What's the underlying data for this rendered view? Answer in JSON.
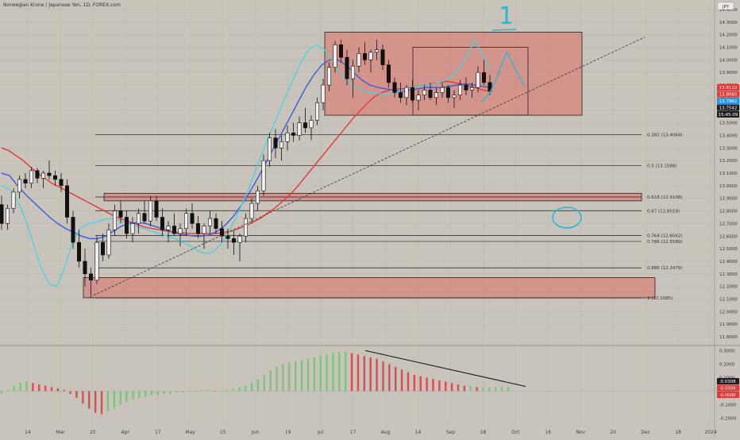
{
  "header": {
    "title": "Norwegian Krone / Japanese Yen, 1D, FOREX.com",
    "currency": "JPY",
    "annotation_number": "1"
  },
  "chart_data": [
    {
      "type": "candlestick",
      "title": "Norwegian Krone / Japanese Yen, 1D, FOREX.com",
      "ylabel": "JPY",
      "ylim": [
        11.75,
        14.45
      ],
      "yticks": [
        "14.4000",
        "14.3000",
        "14.2000",
        "14.1000",
        "14.0000",
        "13.9000",
        "13.8000",
        "13.7000",
        "13.6000",
        "13.5000",
        "13.4000",
        "13.3000",
        "13.2000",
        "13.1000",
        "13.0000",
        "12.9000",
        "12.8000",
        "12.7000",
        "12.6000",
        "12.5000",
        "12.4000",
        "12.3000",
        "12.2000",
        "12.1000",
        "12.0000",
        "11.9000",
        "11.8000"
      ],
      "xticks": [
        "14",
        "Mar",
        "20",
        "Apr",
        "17",
        "May",
        "15",
        "Jun",
        "19",
        "Jul",
        "17",
        "Aug",
        "14",
        "Sep",
        "18",
        "Oct",
        "16",
        "Nov",
        "20",
        "Dec",
        "18",
        "2024"
      ],
      "price_labels": [
        {
          "text": "13.9110",
          "color": "#e53935"
        },
        {
          "text": "13.8060",
          "color": "#e53935"
        },
        {
          "text": "13.7962",
          "color": "#2196f3"
        },
        {
          "text": "13.7542",
          "color": "#1e1e1e"
        },
        {
          "text": "15:45:09",
          "color": "#1e1e1e"
        }
      ],
      "fib_levels": [
        {
          "label": "0.382 (13.4064)",
          "value": 13.4064
        },
        {
          "label": "0.5 (13.1588)",
          "value": 13.1588
        },
        {
          "label": "0.618 (12.9108)",
          "value": 12.9108
        },
        {
          "label": "0.67 (12.8019)",
          "value": 12.8019
        },
        {
          "label": "0.764 (12.6042)",
          "value": 12.6042
        },
        {
          "label": "0.786 (12.5580)",
          "value": 12.558
        },
        {
          "label": "0.886 (12.3479)",
          "value": 12.3479
        },
        {
          "label": "1 (12.1085)",
          "value": 12.1085
        }
      ],
      "zones": [
        {
          "name": "resistance-range",
          "x": [
            -1,
            95
          ],
          "y": [
            13.56,
            14.22
          ]
        },
        {
          "name": "inner-range",
          "x": [
            50,
            92
          ],
          "y": [
            13.56,
            14.1
          ]
        },
        {
          "name": "support-zone",
          "x": [
            -1,
            115
          ],
          "y": [
            12.11,
            12.27
          ]
        },
        {
          "name": "fib-zone",
          "x": [
            -1,
            115
          ],
          "y": [
            12.88,
            12.94
          ]
        }
      ],
      "series": [
        {
          "kind": "ohlc",
          "values": [
            [
              12.85,
              12.92,
              12.65,
              12.7
            ],
            [
              12.7,
              12.85,
              12.65,
              12.82
            ],
            [
              12.82,
              12.98,
              12.78,
              12.95
            ],
            [
              12.95,
              13.08,
              12.9,
              13.05
            ],
            [
              13.05,
              13.1,
              12.98,
              13.02
            ],
            [
              13.02,
              13.15,
              12.98,
              13.12
            ],
            [
              13.12,
              13.14,
              13.02,
              13.06
            ],
            [
              13.06,
              13.12,
              12.98,
              13.1
            ],
            [
              13.1,
              13.2,
              13.05,
              13.08
            ],
            [
              13.08,
              13.12,
              13.0,
              13.05
            ],
            [
              13.05,
              13.1,
              12.95,
              13.0
            ],
            [
              13.0,
              13.05,
              12.7,
              12.75
            ],
            [
              12.75,
              12.8,
              12.5,
              12.55
            ],
            [
              12.55,
              12.65,
              12.35,
              12.4
            ],
            [
              12.4,
              12.5,
              12.2,
              12.3
            ],
            [
              12.3,
              12.35,
              12.11,
              12.25
            ],
            [
              12.25,
              12.6,
              12.22,
              12.55
            ],
            [
              12.55,
              12.62,
              12.4,
              12.45
            ],
            [
              12.45,
              12.7,
              12.42,
              12.65
            ],
            [
              12.65,
              12.85,
              12.6,
              12.8
            ],
            [
              12.8,
              12.88,
              12.7,
              12.75
            ],
            [
              12.75,
              12.8,
              12.58,
              12.62
            ],
            [
              12.62,
              12.75,
              12.55,
              12.7
            ],
            [
              12.7,
              12.82,
              12.62,
              12.78
            ],
            [
              12.78,
              12.88,
              12.7,
              12.72
            ],
            [
              12.72,
              12.92,
              12.68,
              12.88
            ],
            [
              12.88,
              12.92,
              12.72,
              12.75
            ],
            [
              12.75,
              12.82,
              12.6,
              12.65
            ],
            [
              12.65,
              12.72,
              12.55,
              12.68
            ],
            [
              12.68,
              12.78,
              12.6,
              12.62
            ],
            [
              12.62,
              12.7,
              12.52,
              12.66
            ],
            [
              12.66,
              12.82,
              12.6,
              12.78
            ],
            [
              12.78,
              12.86,
              12.66,
              12.7
            ],
            [
              12.7,
              12.76,
              12.58,
              12.62
            ],
            [
              12.62,
              12.7,
              12.5,
              12.68
            ],
            [
              12.68,
              12.8,
              12.62,
              12.74
            ],
            [
              12.74,
              12.78,
              12.62,
              12.66
            ],
            [
              12.66,
              12.72,
              12.55,
              12.6
            ],
            [
              12.6,
              12.66,
              12.5,
              12.58
            ],
            [
              12.58,
              12.64,
              12.45,
              12.55
            ],
            [
              12.55,
              12.62,
              12.4,
              12.6
            ],
            [
              12.6,
              12.78,
              12.55,
              12.74
            ],
            [
              12.74,
              12.9,
              12.7,
              12.86
            ],
            [
              12.86,
              13.0,
              12.8,
              12.96
            ],
            [
              12.96,
              13.25,
              12.92,
              13.2
            ],
            [
              13.2,
              13.42,
              13.15,
              13.38
            ],
            [
              13.38,
              13.45,
              13.22,
              13.3
            ],
            [
              13.3,
              13.4,
              13.2,
              13.35
            ],
            [
              13.35,
              13.48,
              13.28,
              13.42
            ],
            [
              13.42,
              13.5,
              13.35,
              13.4
            ],
            [
              13.4,
              13.55,
              13.36,
              13.5
            ],
            [
              13.5,
              13.62,
              13.42,
              13.46
            ],
            [
              13.46,
              13.56,
              13.36,
              13.52
            ],
            [
              13.52,
              13.7,
              13.48,
              13.66
            ],
            [
              13.66,
              13.85,
              13.6,
              13.8
            ],
            [
              13.8,
              13.98,
              13.75,
              13.94
            ],
            [
              13.94,
              14.15,
              13.9,
              14.12
            ],
            [
              14.12,
              14.16,
              13.98,
              14.02
            ],
            [
              14.02,
              14.08,
              13.8,
              13.85
            ],
            [
              13.85,
              14.0,
              13.7,
              13.95
            ],
            [
              13.95,
              14.1,
              13.9,
              14.05
            ],
            [
              14.05,
              14.14,
              13.96,
              14.0
            ],
            [
              14.0,
              14.08,
              13.9,
              14.06
            ],
            [
              14.06,
              14.16,
              14.0,
              14.08
            ],
            [
              14.08,
              14.12,
              13.92,
              13.96
            ],
            [
              13.96,
              14.0,
              13.78,
              13.82
            ],
            [
              13.82,
              13.86,
              13.7,
              13.74
            ],
            [
              13.74,
              13.82,
              13.66,
              13.7
            ],
            [
              13.7,
              13.8,
              13.64,
              13.78
            ],
            [
              13.78,
              13.84,
              13.66,
              13.68
            ],
            [
              13.68,
              13.76,
              13.6,
              13.72
            ],
            [
              13.72,
              13.8,
              13.68,
              13.76
            ],
            [
              13.76,
              13.82,
              13.68,
              13.7
            ],
            [
              13.7,
              13.78,
              13.64,
              13.74
            ],
            [
              13.74,
              13.82,
              13.7,
              13.78
            ],
            [
              13.78,
              13.8,
              13.66,
              13.7
            ],
            [
              13.7,
              13.76,
              13.62,
              13.72
            ],
            [
              13.72,
              13.84,
              13.68,
              13.8
            ],
            [
              13.8,
              13.86,
              13.72,
              13.76
            ],
            [
              13.76,
              13.82,
              13.7,
              13.78
            ],
            [
              13.78,
              13.95,
              13.74,
              13.9
            ],
            [
              13.9,
              14.0,
              13.8,
              13.82
            ],
            [
              13.82,
              13.88,
              13.72,
              13.75
            ]
          ]
        },
        {
          "name": "red-ma",
          "color": "#e53935",
          "values": [
            13.3,
            13.28,
            13.24,
            13.2,
            13.15,
            13.1,
            13.06,
            13.02,
            12.99,
            12.96,
            12.93,
            12.9,
            12.87,
            12.84,
            12.81,
            12.78,
            12.75,
            12.73,
            12.71,
            12.69,
            12.67,
            12.66,
            12.65,
            12.64,
            12.63,
            12.63,
            12.62,
            12.62,
            12.62,
            12.62,
            12.62,
            12.63,
            12.64,
            12.66,
            12.68,
            12.71,
            12.74,
            12.78,
            12.82,
            12.87,
            12.92,
            12.98,
            13.05,
            13.12,
            13.19,
            13.26,
            13.33,
            13.4,
            13.47,
            13.54,
            13.6,
            13.66,
            13.71,
            13.74,
            13.76,
            13.77,
            13.77,
            13.78,
            13.79,
            13.8,
            13.81,
            13.82,
            13.83,
            13.82,
            13.81,
            13.79,
            13.78,
            13.76,
            13.75
          ]
        },
        {
          "name": "blue-ma",
          "color": "#3b5bdb",
          "values": [
            13.1,
            13.08,
            13.0,
            12.93,
            12.87,
            12.81,
            12.75,
            12.7,
            12.66,
            12.63,
            12.6,
            12.58,
            12.58,
            12.6,
            12.64,
            12.68,
            12.7,
            12.71,
            12.7,
            12.68,
            12.66,
            12.64,
            12.62,
            12.61,
            12.6,
            12.6,
            12.61,
            12.64,
            12.69,
            12.76,
            12.85,
            12.95,
            13.06,
            13.18,
            13.3,
            13.42,
            13.54,
            13.66,
            13.78,
            13.88,
            13.96,
            14.0,
            14.0,
            13.96,
            13.9,
            13.84,
            13.8,
            13.78,
            13.77,
            13.76,
            13.75,
            13.76,
            13.77,
            13.78,
            13.78,
            13.78,
            13.79,
            13.8,
            13.81,
            13.8,
            13.79,
            13.78
          ]
        },
        {
          "name": "cyan-ma",
          "color": "#4dd0e1",
          "values": [
            13.0,
            12.97,
            12.88,
            12.74,
            12.55,
            12.35,
            12.22,
            12.2,
            12.35,
            12.55,
            12.66,
            12.7,
            12.71,
            12.73,
            12.74,
            12.72,
            12.7,
            12.68,
            12.66,
            12.64,
            12.62,
            12.6,
            12.58,
            12.55,
            12.52,
            12.48,
            12.46,
            12.48,
            12.55,
            12.65,
            12.78,
            12.92,
            13.08,
            13.25,
            13.4,
            13.55,
            13.7,
            13.84,
            13.98,
            14.08,
            14.12,
            14.08,
            14.0,
            13.9,
            13.82,
            13.78,
            13.75,
            13.74,
            13.73,
            13.73,
            13.74,
            13.76,
            13.78,
            13.79,
            13.8,
            13.81,
            13.83,
            13.86,
            13.92,
            14.02,
            14.16,
            14.05,
            13.92
          ]
        }
      ]
    },
    {
      "type": "bar",
      "name": "histogram-oscillator",
      "ylim": [
        -0.25,
        0.32
      ],
      "yticks": [
        "0.3000",
        "0.2000",
        "0.1000",
        "0.0000",
        "-0.1000",
        "-0.2000"
      ],
      "value_labels": [
        {
          "text": "0.0308",
          "color": "#1e1e1e"
        },
        {
          "text": "0.0309",
          "color": "#e53935"
        },
        {
          "text": "0.0000",
          "color": "#e53935"
        }
      ],
      "values": [
        -0.02,
        0.01,
        0.04,
        0.06,
        0.07,
        0.06,
        0.05,
        0.04,
        0.03,
        0.02,
        0.01,
        -0.02,
        -0.05,
        -0.09,
        -0.13,
        -0.16,
        -0.17,
        -0.15,
        -0.13,
        -0.1,
        -0.08,
        -0.06,
        -0.05,
        -0.04,
        -0.03,
        -0.03,
        -0.02,
        -0.02,
        -0.01,
        -0.01,
        0.0,
        0.0,
        0.01,
        0.01,
        0.0,
        0.0,
        0.01,
        0.02,
        0.03,
        0.04,
        0.06,
        0.09,
        0.12,
        0.15,
        0.18,
        0.2,
        0.21,
        0.22,
        0.23,
        0.24,
        0.25,
        0.26,
        0.27,
        0.28,
        0.29,
        0.29,
        0.28,
        0.27,
        0.26,
        0.25,
        0.24,
        0.22,
        0.2,
        0.18,
        0.16,
        0.14,
        0.12,
        0.11,
        0.1,
        0.09,
        0.08,
        0.07,
        0.06,
        0.05,
        0.04,
        0.04,
        0.03,
        0.03,
        0.03,
        0.03,
        0.03,
        0.03
      ]
    }
  ]
}
